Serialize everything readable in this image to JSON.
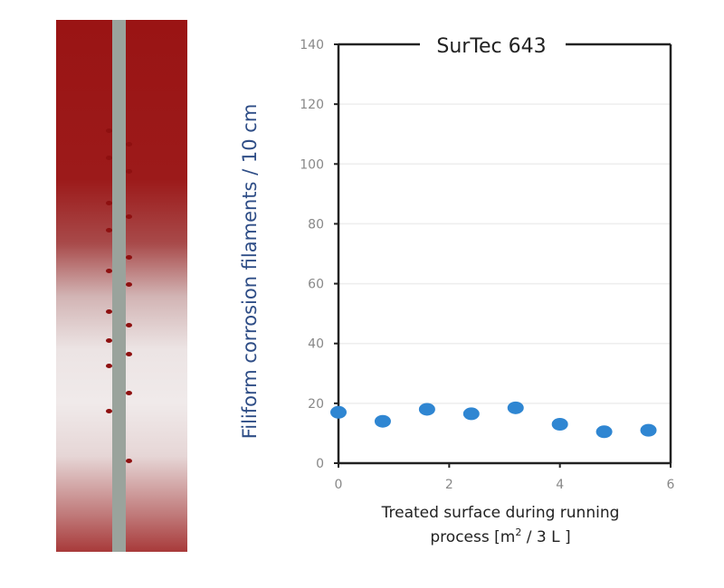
{
  "photo": {
    "description_label": ""
  },
  "chart_data": {
    "type": "scatter",
    "title": "SurTec 643",
    "xlabel_line1": "Treated surface during running",
    "xlabel_line2_pre": "process [m",
    "xlabel_sup": "2",
    "xlabel_line2_post": " / 3 L ]",
    "ylabel": "Filiform corrosion filaments / 10 cm",
    "xlim": [
      0,
      6
    ],
    "ylim": [
      0,
      140
    ],
    "xticks": [
      0,
      2,
      4,
      6
    ],
    "yticks": [
      0,
      20,
      40,
      60,
      80,
      100,
      120,
      140
    ],
    "grid": "horizontal",
    "marker_color": "#2f86d2",
    "ylabel_color": "#2e4d86",
    "x": [
      0,
      0.8,
      1.6,
      2.4,
      3.2,
      4.0,
      4.8,
      5.6
    ],
    "y": [
      17,
      14,
      18,
      16.5,
      18.5,
      13,
      10.5,
      11
    ]
  }
}
